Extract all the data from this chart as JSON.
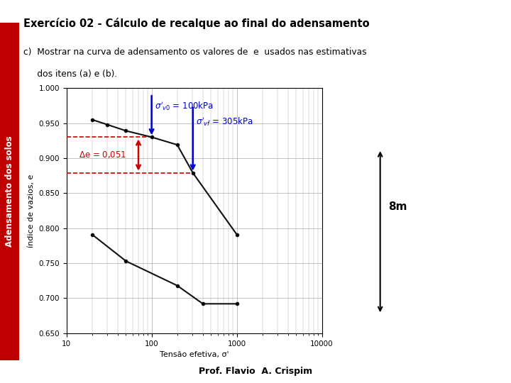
{
  "title": "Exercício 02 - Cálculo de recalque ao final do adensamento",
  "subtitle_c": "c)  Mostrar na curva de adensamento os valores de  e  usados nas estimativas",
  "subtitle_dos": "     dos itens (a) e (b).",
  "ylabel": "índice de vazios, e",
  "xlabel": "Tensão efetiva, σ'",
  "slide_bg": "#ffffff",
  "left_bar_color": "#c00000",
  "dark_red_line": "#7b0000",
  "curve_color": "#111111",
  "grid_color": "#aaaaaa",
  "upper_curve_x": [
    20,
    30,
    50,
    100,
    200,
    305,
    1000
  ],
  "upper_curve_y": [
    0.955,
    0.948,
    0.939,
    0.93,
    0.919,
    0.879,
    0.791
  ],
  "lower_curve_x": [
    20,
    50,
    200,
    400,
    1000
  ],
  "lower_curve_y": [
    0.791,
    0.753,
    0.718,
    0.692,
    0.692
  ],
  "sigma_v0": 100,
  "e_v0": 0.93,
  "sigma_vf": 305,
  "e_vf": 0.879,
  "delta_e": 0.051,
  "ylim": [
    0.65,
    1.0
  ],
  "xlim_log": [
    10,
    10000
  ],
  "blue_color": "#0000cc",
  "red_color": "#cc0000",
  "prof_text": "Prof. Flavio  A. Crispim",
  "8m_text": "8m",
  "left_bar_text": "Adensamento dos solos"
}
